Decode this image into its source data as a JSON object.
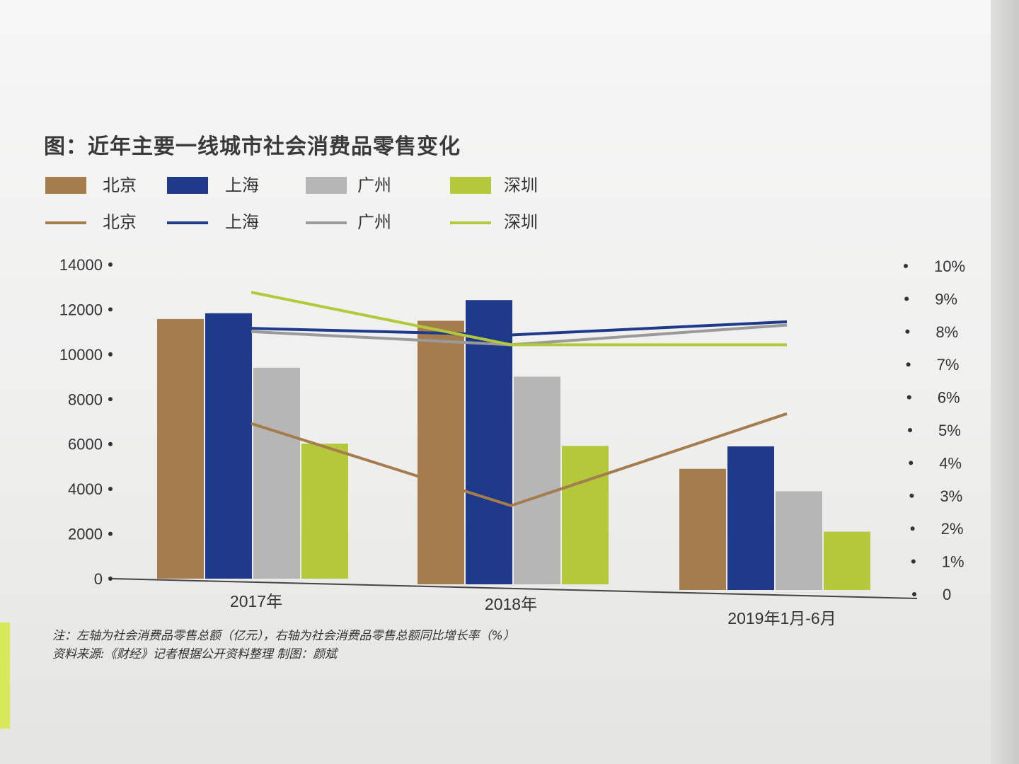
{
  "chart_data": {
    "type": "bar",
    "title": "图：近年主要一线城市社会消费品零售变化",
    "categories": [
      "2017年",
      "2018年",
      "2019年1月-6月"
    ],
    "series": [
      {
        "name": "北京",
        "kind": "bar",
        "color": "#a57c4e",
        "values": [
          11575,
          11747,
          5400
        ]
      },
      {
        "name": "上海",
        "kind": "bar",
        "color": "#1f3a8a",
        "values": [
          11830,
          12669,
          6400
        ]
      },
      {
        "name": "广州",
        "kind": "bar",
        "color": "#b6b6b6",
        "values": [
          9403,
          9256,
          4400
        ]
      },
      {
        "name": "深圳",
        "kind": "bar",
        "color": "#b3c83a",
        "values": [
          6016,
          6169,
          2600
        ]
      },
      {
        "name": "北京",
        "kind": "line",
        "color": "#a57c4e",
        "values": [
          5.2,
          2.7,
          5.5
        ]
      },
      {
        "name": "上海",
        "kind": "line",
        "color": "#1f3a8a",
        "values": [
          8.1,
          7.9,
          8.3
        ]
      },
      {
        "name": "广州",
        "kind": "line",
        "color": "#9a9a9a",
        "values": [
          8.0,
          7.6,
          8.2
        ]
      },
      {
        "name": "深圳",
        "kind": "line",
        "color": "#b3c83a",
        "values": [
          9.2,
          7.6,
          7.6
        ]
      }
    ],
    "left_axis": {
      "min": 0,
      "max": 14000,
      "ticks": [
        "0",
        "2000",
        "4000",
        "6000",
        "8000",
        "10000",
        "12000",
        "14000"
      ]
    },
    "right_axis": {
      "min": 0,
      "max": 10,
      "ticks": [
        "0",
        "1%",
        "2%",
        "3%",
        "4%",
        "5%",
        "6%",
        "7%",
        "8%",
        "9%",
        "10%"
      ]
    },
    "legend_position": "top-left",
    "grid": false
  },
  "notes": {
    "line1": "注：左轴为社会消费品零售总额（亿元），右轴为社会消费品零售总额同比增长率（%）",
    "line2": "资料来源:《财经》记者根据公开资料整理        制图：颜斌"
  }
}
